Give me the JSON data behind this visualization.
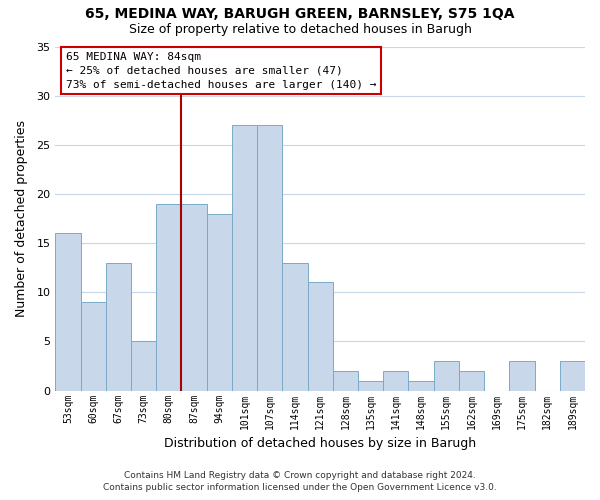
{
  "title1": "65, MEDINA WAY, BARUGH GREEN, BARNSLEY, S75 1QA",
  "title2": "Size of property relative to detached houses in Barugh",
  "xlabel": "Distribution of detached houses by size in Barugh",
  "ylabel": "Number of detached properties",
  "bins": [
    "53sqm",
    "60sqm",
    "67sqm",
    "73sqm",
    "80sqm",
    "87sqm",
    "94sqm",
    "101sqm",
    "107sqm",
    "114sqm",
    "121sqm",
    "128sqm",
    "135sqm",
    "141sqm",
    "148sqm",
    "155sqm",
    "162sqm",
    "169sqm",
    "175sqm",
    "182sqm",
    "189sqm"
  ],
  "values": [
    16,
    9,
    13,
    5,
    19,
    19,
    18,
    27,
    27,
    13,
    11,
    2,
    1,
    2,
    1,
    3,
    2,
    0,
    3,
    0,
    3
  ],
  "bar_color": "#c8d8ea",
  "bar_edge_color": "#7aaac8",
  "vline_color": "#aa0000",
  "vline_pos": 4.5,
  "ylim": [
    0,
    35
  ],
  "yticks": [
    0,
    5,
    10,
    15,
    20,
    25,
    30,
    35
  ],
  "annotation_title": "65 MEDINA WAY: 84sqm",
  "annotation_line1": "← 25% of detached houses are smaller (47)",
  "annotation_line2": "73% of semi-detached houses are larger (140) →",
  "annotation_box_color": "#ffffff",
  "annotation_box_edge": "#cc0000",
  "footer1": "Contains HM Land Registry data © Crown copyright and database right 2024.",
  "footer2": "Contains public sector information licensed under the Open Government Licence v3.0.",
  "background_color": "#ffffff",
  "grid_color": "#c8d8e8"
}
